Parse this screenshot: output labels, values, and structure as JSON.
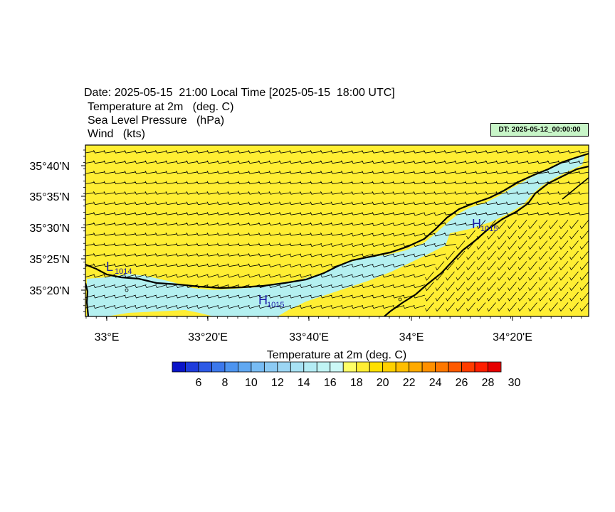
{
  "header": {
    "title": "Date: 2025-05-15  21:00 Local Time [2025-05-15  18:00 UTC]",
    "subtitles": [
      "Temperature at 2m   (deg. C)",
      "Sea Level Pressure   (hPa)",
      "Wind   (kts)"
    ],
    "dt_label": "DT: 2025-05-12_00:00:00"
  },
  "map": {
    "lat_labels": [
      "35°40'N",
      "35°35'N",
      "35°30'N",
      "35°25'N",
      "35°20'N"
    ],
    "lon_labels": [
      "33°E",
      "33°20'E",
      "33°40'E",
      "34°E",
      "34°20'E"
    ],
    "pressure_centers": [
      {
        "letter": "L",
        "value": "1014"
      },
      {
        "letter": "H",
        "value": "1015"
      },
      {
        "letter": "H",
        "value": "1015"
      }
    ],
    "colors": {
      "warm_fill": "#ffee33",
      "cool_fill": "#b4f0f0",
      "coast": "#000000",
      "pressure_label": "#1a1aa8"
    }
  },
  "colorbar": {
    "title": "Temperature at 2m  (deg. C)",
    "tick_labels": [
      "6",
      "8",
      "10",
      "12",
      "14",
      "16",
      "18",
      "20",
      "22",
      "24",
      "26",
      "28",
      "30"
    ],
    "colors": [
      "#0a14c8",
      "#1e3cdc",
      "#2d5ae6",
      "#3c78ec",
      "#4d94f0",
      "#60a8f2",
      "#78bcf4",
      "#8ccaf4",
      "#9cd6f4",
      "#a8e2f4",
      "#b4ecf4",
      "#c0f4f4",
      "#ccf8f6",
      "#ffff66",
      "#ffee33",
      "#ffe000",
      "#ffd000",
      "#ffbe00",
      "#ffaa00",
      "#ff9000",
      "#ff7800",
      "#ff5a00",
      "#ff3c00",
      "#ff1e00",
      "#e60000"
    ]
  }
}
